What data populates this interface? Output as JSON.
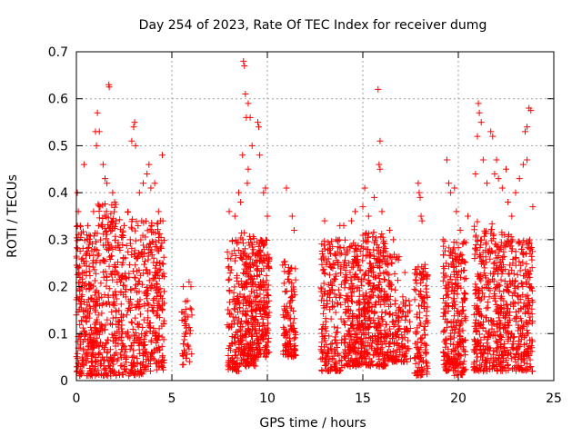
{
  "chart_data": {
    "type": "scatter",
    "title": "Day 254 of 2023, Rate Of TEC Index for receiver dumg",
    "xlabel": "GPS time / hours",
    "ylabel": "ROTI / TECUs",
    "xlim": [
      0,
      25
    ],
    "ylim": [
      0,
      0.7
    ],
    "xticks": [
      0,
      5,
      10,
      15,
      20,
      25
    ],
    "xtick_labels": [
      "0",
      "5",
      "10",
      "15",
      "20",
      "25"
    ],
    "yticks": [
      0,
      0.1,
      0.2,
      0.3,
      0.4,
      0.5,
      0.6,
      0.7
    ],
    "ytick_labels": [
      "0",
      "0.1",
      "0.2",
      "0.3",
      "0.4",
      "0.5",
      "0.6",
      "0.7"
    ],
    "grid": true,
    "marker": "+",
    "color": "#ff0000",
    "series": [
      {
        "name": "ROTI",
        "points": [
          [
            0.05,
            0.4
          ],
          [
            0.1,
            0.36
          ],
          [
            0.2,
            0.33
          ],
          [
            0.4,
            0.46
          ],
          [
            0.6,
            0.33
          ],
          [
            0.9,
            0.36
          ],
          [
            1.0,
            0.53
          ],
          [
            1.05,
            0.5
          ],
          [
            1.1,
            0.57
          ],
          [
            1.2,
            0.53
          ],
          [
            1.4,
            0.46
          ],
          [
            1.5,
            0.43
          ],
          [
            1.6,
            0.42
          ],
          [
            1.7,
            0.63
          ],
          [
            1.72,
            0.625
          ],
          [
            1.9,
            0.4
          ],
          [
            2.0,
            0.38
          ],
          [
            2.5,
            0.33
          ],
          [
            2.9,
            0.51
          ],
          [
            3.0,
            0.54
          ],
          [
            3.05,
            0.55
          ],
          [
            3.1,
            0.5
          ],
          [
            3.3,
            0.4
          ],
          [
            3.5,
            0.42
          ],
          [
            3.7,
            0.44
          ],
          [
            3.8,
            0.46
          ],
          [
            3.9,
            0.41
          ],
          [
            4.1,
            0.42
          ],
          [
            4.3,
            0.36
          ],
          [
            4.5,
            0.48
          ],
          [
            4.4,
            0.34
          ],
          [
            5.6,
            0.2
          ],
          [
            5.7,
            0.13
          ],
          [
            5.9,
            0.21
          ],
          [
            6.0,
            0.2
          ],
          [
            5.95,
            0.1
          ],
          [
            8.0,
            0.36
          ],
          [
            8.3,
            0.35
          ],
          [
            8.5,
            0.4
          ],
          [
            8.6,
            0.38
          ],
          [
            8.7,
            0.48
          ],
          [
            8.75,
            0.68
          ],
          [
            8.8,
            0.67
          ],
          [
            8.85,
            0.61
          ],
          [
            8.9,
            0.56
          ],
          [
            9.0,
            0.59
          ],
          [
            9.1,
            0.56
          ],
          [
            8.95,
            0.42
          ],
          [
            9.0,
            0.45
          ],
          [
            9.2,
            0.5
          ],
          [
            9.5,
            0.55
          ],
          [
            9.55,
            0.54
          ],
          [
            9.6,
            0.48
          ],
          [
            9.8,
            0.4
          ],
          [
            9.9,
            0.41
          ],
          [
            10.0,
            0.35
          ],
          [
            11.0,
            0.41
          ],
          [
            11.3,
            0.35
          ],
          [
            11.4,
            0.32
          ],
          [
            13.0,
            0.34
          ],
          [
            13.3,
            0.27
          ],
          [
            13.6,
            0.3
          ],
          [
            13.8,
            0.33
          ],
          [
            14.0,
            0.33
          ],
          [
            14.4,
            0.34
          ],
          [
            14.6,
            0.36
          ],
          [
            15.0,
            0.37
          ],
          [
            15.1,
            0.41
          ],
          [
            15.3,
            0.35
          ],
          [
            15.6,
            0.39
          ],
          [
            15.8,
            0.62
          ],
          [
            15.9,
            0.51
          ],
          [
            15.85,
            0.46
          ],
          [
            15.9,
            0.45
          ],
          [
            16.0,
            0.36
          ],
          [
            16.4,
            0.32
          ],
          [
            16.6,
            0.3
          ],
          [
            17.2,
            0.23
          ],
          [
            17.9,
            0.42
          ],
          [
            17.95,
            0.4
          ],
          [
            18.0,
            0.39
          ],
          [
            18.05,
            0.35
          ],
          [
            18.1,
            0.34
          ],
          [
            19.2,
            0.3
          ],
          [
            19.4,
            0.47
          ],
          [
            19.5,
            0.42
          ],
          [
            19.6,
            0.4
          ],
          [
            19.8,
            0.41
          ],
          [
            19.9,
            0.36
          ],
          [
            20.1,
            0.32
          ],
          [
            20.5,
            0.35
          ],
          [
            20.9,
            0.44
          ],
          [
            21.0,
            0.52
          ],
          [
            21.05,
            0.59
          ],
          [
            21.1,
            0.57
          ],
          [
            21.2,
            0.55
          ],
          [
            21.3,
            0.47
          ],
          [
            21.5,
            0.42
          ],
          [
            21.7,
            0.53
          ],
          [
            21.8,
            0.52
          ],
          [
            21.9,
            0.44
          ],
          [
            22.0,
            0.47
          ],
          [
            22.1,
            0.43
          ],
          [
            22.3,
            0.41
          ],
          [
            22.5,
            0.45
          ],
          [
            22.6,
            0.38
          ],
          [
            22.8,
            0.35
          ],
          [
            23.0,
            0.4
          ],
          [
            23.2,
            0.43
          ],
          [
            23.4,
            0.46
          ],
          [
            23.5,
            0.53
          ],
          [
            23.6,
            0.54
          ],
          [
            23.7,
            0.58
          ],
          [
            23.8,
            0.575
          ],
          [
            23.6,
            0.47
          ],
          [
            23.9,
            0.37
          ],
          [
            0.1,
            0.03
          ],
          [
            0.3,
            0.05
          ],
          [
            0.5,
            0.1
          ],
          [
            0.8,
            0.02
          ],
          [
            1.0,
            0.05
          ],
          [
            1.3,
            0.12
          ],
          [
            1.6,
            0.05
          ],
          [
            2.0,
            0.1
          ],
          [
            2.5,
            0.03
          ],
          [
            3.0,
            0.08
          ],
          [
            3.5,
            0.04
          ],
          [
            4.0,
            0.1
          ],
          [
            4.5,
            0.05
          ],
          [
            8.2,
            0.03
          ],
          [
            8.8,
            0.06
          ],
          [
            9.5,
            0.08
          ],
          [
            10.0,
            0.1
          ],
          [
            11.0,
            0.07
          ],
          [
            13.0,
            0.04
          ],
          [
            13.5,
            0.03
          ],
          [
            14.0,
            0.06
          ],
          [
            15.0,
            0.05
          ],
          [
            16.0,
            0.07
          ],
          [
            18.0,
            0.02
          ],
          [
            19.5,
            0.04
          ],
          [
            20.0,
            0.02
          ],
          [
            21.0,
            0.05
          ],
          [
            22.0,
            0.03
          ],
          [
            23.0,
            0.04
          ],
          [
            23.8,
            0.03
          ]
        ]
      }
    ],
    "dense_clusters": [
      {
        "range": [
          0.0,
          1.1
        ],
        "low": 0.01,
        "high": 0.33,
        "count": 260
      },
      {
        "range": [
          1.1,
          2.2
        ],
        "low": 0.01,
        "high": 0.38,
        "count": 220
      },
      {
        "range": [
          2.2,
          3.5
        ],
        "low": 0.01,
        "high": 0.36,
        "count": 220
      },
      {
        "range": [
          3.5,
          4.6
        ],
        "low": 0.02,
        "high": 0.34,
        "count": 220
      },
      {
        "range": [
          5.5,
          6.05
        ],
        "low": 0.03,
        "high": 0.19,
        "count": 40
      },
      {
        "range": [
          7.9,
          8.6
        ],
        "low": 0.02,
        "high": 0.3,
        "count": 130
      },
      {
        "range": [
          8.6,
          9.4
        ],
        "low": 0.03,
        "high": 0.32,
        "count": 220
      },
      {
        "range": [
          9.4,
          10.1
        ],
        "low": 0.05,
        "high": 0.3,
        "count": 180
      },
      {
        "range": [
          10.8,
          11.5
        ],
        "low": 0.05,
        "high": 0.26,
        "count": 120
      },
      {
        "range": [
          12.8,
          13.9
        ],
        "low": 0.02,
        "high": 0.3,
        "count": 200
      },
      {
        "range": [
          14.0,
          15.0
        ],
        "low": 0.03,
        "high": 0.3,
        "count": 240
      },
      {
        "range": [
          15.0,
          16.2
        ],
        "low": 0.03,
        "high": 0.32,
        "count": 300
      },
      {
        "range": [
          16.2,
          16.9
        ],
        "low": 0.04,
        "high": 0.27,
        "count": 120
      },
      {
        "range": [
          16.9,
          17.5
        ],
        "low": 0.04,
        "high": 0.18,
        "count": 60
      },
      {
        "range": [
          17.7,
          18.4
        ],
        "low": 0.01,
        "high": 0.25,
        "count": 130
      },
      {
        "range": [
          19.2,
          19.8
        ],
        "low": 0.02,
        "high": 0.3,
        "count": 140
      },
      {
        "range": [
          19.8,
          20.4
        ],
        "low": 0.01,
        "high": 0.3,
        "count": 140
      },
      {
        "range": [
          20.8,
          21.8
        ],
        "low": 0.02,
        "high": 0.34,
        "count": 220
      },
      {
        "range": [
          21.8,
          22.8
        ],
        "low": 0.02,
        "high": 0.32,
        "count": 220
      },
      {
        "range": [
          22.8,
          23.9
        ],
        "low": 0.02,
        "high": 0.3,
        "count": 220
      }
    ]
  }
}
